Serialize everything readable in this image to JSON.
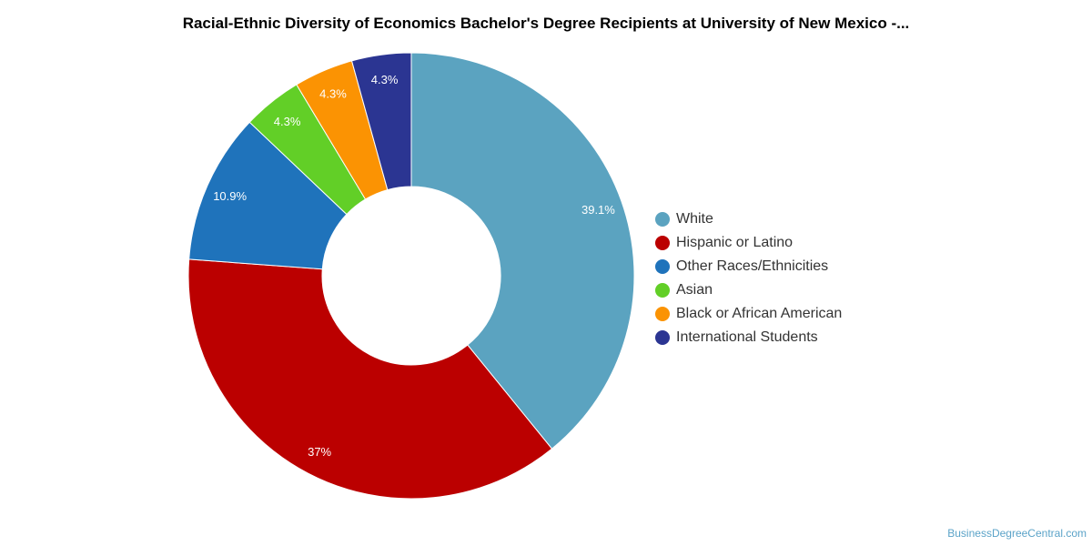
{
  "chart_data": {
    "type": "pie",
    "donut": true,
    "title": "Racial-Ethnic Diversity of Economics Bachelor's Degree Recipients at University of New Mexico -...",
    "legend_position": "right",
    "slices": [
      {
        "name": "White",
        "value": 39.1,
        "label": "39.1%",
        "color": "#5ba3c0"
      },
      {
        "name": "Hispanic or Latino",
        "value": 37,
        "label": "37%",
        "color": "#bb0000"
      },
      {
        "name": "Other Races/Ethnicities",
        "value": 10.9,
        "label": "10.9%",
        "color": "#1f73bb"
      },
      {
        "name": "Asian",
        "value": 4.3,
        "label": "4.3%",
        "color": "#62cf27"
      },
      {
        "name": "Black or African American",
        "value": 4.3,
        "label": "4.3%",
        "color": "#fb9303"
      },
      {
        "name": "International Students",
        "value": 4.3,
        "label": "4.3%",
        "color": "#2b3592"
      }
    ]
  },
  "watermark": "BusinessDegreeCentral.com"
}
